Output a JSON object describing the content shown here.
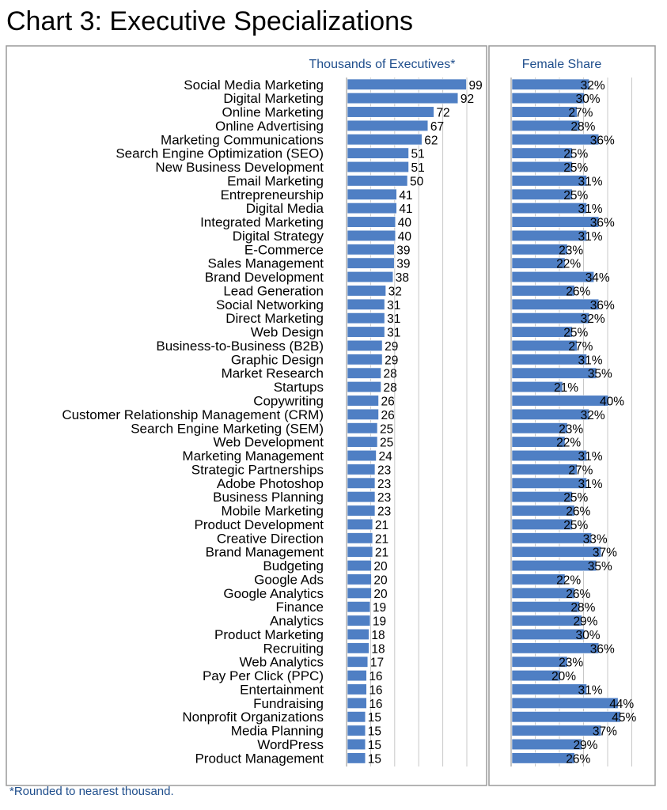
{
  "title": "Chart 3: Executive Specializations",
  "footnote": "*Rounded to nearest thousand.",
  "colors": {
    "bar": "#4f7fc4",
    "bar_edge": "#ffffff",
    "frame": "#9a9a9a",
    "axis_text": "#1f4e8c"
  },
  "chart_data": [
    {
      "type": "bar",
      "orientation": "horizontal",
      "title": "Thousands of Executives*",
      "xlim": [
        0,
        100
      ],
      "grid": true,
      "categories": [
        "Social Media Marketing",
        "Digital Marketing",
        "Online Marketing",
        "Online Advertising",
        "Marketing Communications",
        "Search Engine Optimization (SEO)",
        "New Business Development",
        "Email Marketing",
        "Entrepreneurship",
        "Digital Media",
        "Integrated Marketing",
        "Digital Strategy",
        "E-Commerce",
        "Sales Management",
        "Brand Development",
        "Lead Generation",
        "Social Networking",
        "Direct Marketing",
        "Web Design",
        "Business-to-Business (B2B)",
        "Graphic Design",
        "Market Research",
        "Startups",
        "Copywriting",
        "Customer Relationship Management (CRM)",
        "Search Engine Marketing (SEM)",
        "Web Development",
        "Marketing Management",
        "Strategic Partnerships",
        "Adobe Photoshop",
        "Business Planning",
        "Mobile Marketing",
        "Product Development",
        "Creative Direction",
        "Brand Management",
        "Budgeting",
        "Google Ads",
        "Google Analytics",
        "Finance",
        "Analytics",
        "Product Marketing",
        "Recruiting",
        "Web Analytics",
        "Pay Per Click (PPC)",
        "Entertainment",
        "Fundraising",
        "Nonprofit Organizations",
        "Media Planning",
        "WordPress",
        "Product Management"
      ],
      "values": [
        99,
        92,
        72,
        67,
        62,
        51,
        51,
        50,
        41,
        41,
        40,
        40,
        39,
        39,
        38,
        32,
        31,
        31,
        31,
        29,
        29,
        28,
        28,
        26,
        26,
        25,
        25,
        24,
        23,
        23,
        23,
        23,
        21,
        21,
        21,
        20,
        20,
        20,
        19,
        19,
        18,
        18,
        17,
        16,
        16,
        16,
        15,
        15,
        15,
        15
      ],
      "labels": [
        "99",
        "92",
        "72",
        "67",
        "62",
        "51",
        "51",
        "50",
        "41",
        "41",
        "40",
        "40",
        "39",
        "39",
        "38",
        "32",
        "31",
        "31",
        "31",
        "29",
        "29",
        "28",
        "28",
        "26",
        "26",
        "25",
        "25",
        "24",
        "23",
        "23",
        "23",
        "23",
        "21",
        "21",
        "21",
        "20",
        "20",
        "20",
        "19",
        "19",
        "18",
        "18",
        "17",
        "16",
        "16",
        "16",
        "15",
        "15",
        "15",
        "15"
      ]
    },
    {
      "type": "bar",
      "orientation": "horizontal",
      "title": "Female Share",
      "unit": "%",
      "xlim": [
        0,
        50
      ],
      "grid": true,
      "categories": [
        "Social Media Marketing",
        "Digital Marketing",
        "Online Marketing",
        "Online Advertising",
        "Marketing Communications",
        "Search Engine Optimization (SEO)",
        "New Business Development",
        "Email Marketing",
        "Entrepreneurship",
        "Digital Media",
        "Integrated Marketing",
        "Digital Strategy",
        "E-Commerce",
        "Sales Management",
        "Brand Development",
        "Lead Generation",
        "Social Networking",
        "Direct Marketing",
        "Web Design",
        "Business-to-Business (B2B)",
        "Graphic Design",
        "Market Research",
        "Startups",
        "Copywriting",
        "Customer Relationship Management (CRM)",
        "Search Engine Marketing (SEM)",
        "Web Development",
        "Marketing Management",
        "Strategic Partnerships",
        "Adobe Photoshop",
        "Business Planning",
        "Mobile Marketing",
        "Product Development",
        "Creative Direction",
        "Brand Management",
        "Budgeting",
        "Google Ads",
        "Google Analytics",
        "Finance",
        "Analytics",
        "Product Marketing",
        "Recruiting",
        "Web Analytics",
        "Pay Per Click (PPC)",
        "Entertainment",
        "Fundraising",
        "Nonprofit Organizations",
        "Media Planning",
        "WordPress",
        "Product Management"
      ],
      "values": [
        32,
        30,
        27,
        28,
        36,
        25,
        25,
        31,
        25,
        31,
        36,
        31,
        23,
        22,
        34,
        26,
        36,
        32,
        25,
        27,
        31,
        35,
        21,
        40,
        32,
        23,
        22,
        31,
        27,
        31,
        25,
        26,
        25,
        33,
        37,
        35,
        22,
        26,
        28,
        29,
        30,
        36,
        23,
        20,
        31,
        44,
        45,
        37,
        29,
        26
      ],
      "labels": [
        "32%",
        "30%",
        "27%",
        "28%",
        "36%",
        "25%",
        "25%",
        "31%",
        "25%",
        "31%",
        "36%",
        "31%",
        "23%",
        "22%",
        "34%",
        "26%",
        "36%",
        "32%",
        "25%",
        "27%",
        "31%",
        "35%",
        "21%",
        "40%",
        "32%",
        "23%",
        "22%",
        "31%",
        "27%",
        "31%",
        "25%",
        "26%",
        "25%",
        "33%",
        "37%",
        "35%",
        "22%",
        "26%",
        "28%",
        "29%",
        "30%",
        "36%",
        "23%",
        "20%",
        "31%",
        "44%",
        "45%",
        "37%",
        "29%",
        "26%"
      ]
    }
  ]
}
